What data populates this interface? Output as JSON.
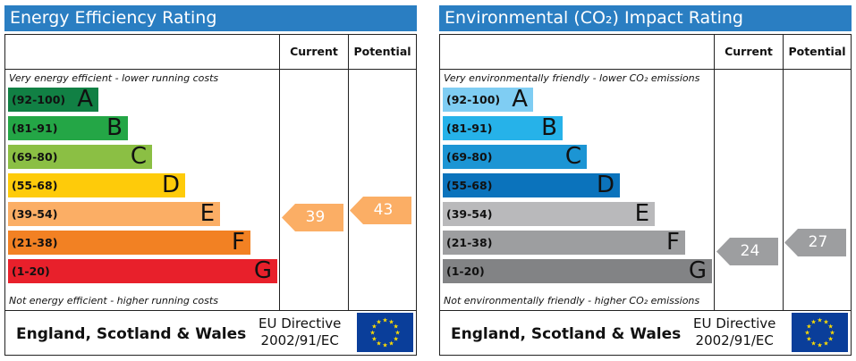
{
  "chart_data": [
    {
      "type": "bar",
      "title": "Energy Efficiency Rating",
      "columns": [
        "Current",
        "Potential"
      ],
      "top_note": "Very energy efficient - lower running costs",
      "bottom_note": "Not energy efficient - higher running costs",
      "categories": [
        "A",
        "B",
        "C",
        "D",
        "E",
        "F",
        "G"
      ],
      "bands": [
        {
          "letter": "A",
          "range": "(92-100)",
          "color": "#118044",
          "text_color": "#111111"
        },
        {
          "letter": "B",
          "range": "(81-91)",
          "color": "#24a646",
          "text_color": "#111111"
        },
        {
          "letter": "C",
          "range": "(69-80)",
          "color": "#8bbf44",
          "text_color": "#111111"
        },
        {
          "letter": "D",
          "range": "(55-68)",
          "color": "#fecb0a",
          "text_color": "#111111"
        },
        {
          "letter": "E",
          "range": "(39-54)",
          "color": "#fbae65",
          "text_color": "#111111"
        },
        {
          "letter": "F",
          "range": "(21-38)",
          "color": "#f28123",
          "text_color": "#111111"
        },
        {
          "letter": "G",
          "range": "(1-20)",
          "color": "#e8202b",
          "text_color": "#111111"
        }
      ],
      "current": {
        "value": 39,
        "label": "39",
        "band": "E",
        "color": "#fbae65"
      },
      "potential": {
        "value": 43,
        "label": "43",
        "band": "E",
        "color": "#fbae65"
      }
    },
    {
      "type": "bar",
      "title": "Environmental (CO₂) Impact Rating",
      "columns": [
        "Current",
        "Potential"
      ],
      "top_note": "Very environmentally friendly - lower CO₂ emissions",
      "bottom_note": "Not environmentally friendly - higher CO₂ emissions",
      "categories": [
        "A",
        "B",
        "C",
        "D",
        "E",
        "F",
        "G"
      ],
      "bands": [
        {
          "letter": "A",
          "range": "(92-100)",
          "color": "#7fcdf3",
          "text_color": "#111111"
        },
        {
          "letter": "B",
          "range": "(81-91)",
          "color": "#26b2e9",
          "text_color": "#111111"
        },
        {
          "letter": "C",
          "range": "(69-80)",
          "color": "#1c95d4",
          "text_color": "#111111"
        },
        {
          "letter": "D",
          "range": "(55-68)",
          "color": "#0b73bc",
          "text_color": "#111111"
        },
        {
          "letter": "E",
          "range": "(39-54)",
          "color": "#b9b9bb",
          "text_color": "#111111"
        },
        {
          "letter": "F",
          "range": "(21-38)",
          "color": "#9d9ea0",
          "text_color": "#111111"
        },
        {
          "letter": "G",
          "range": "(1-20)",
          "color": "#828385",
          "text_color": "#111111"
        }
      ],
      "current": {
        "value": 24,
        "label": "24",
        "band": "F",
        "color": "#9d9ea0"
      },
      "potential": {
        "value": 27,
        "label": "27",
        "band": "F",
        "color": "#9d9ea0"
      }
    }
  ],
  "footer": {
    "region": "England, Scotland & Wales",
    "directive_line1": "EU Directive",
    "directive_line2": "2002/91/EC",
    "flag_icon": "eu-flag-icon"
  },
  "colors": {
    "title_bar": "#2a7ec2",
    "eu_blue": "#0a3e9a",
    "eu_star": "#ffdd00"
  }
}
